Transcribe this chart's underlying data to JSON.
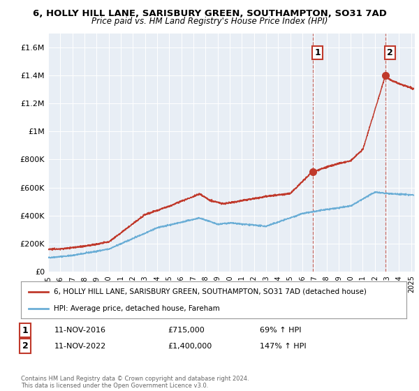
{
  "title": "6, HOLLY HILL LANE, SARISBURY GREEN, SOUTHAMPTON, SO31 7AD",
  "subtitle": "Price paid vs. HM Land Registry's House Price Index (HPI)",
  "background_color": "#f5f5f5",
  "plot_bg_color": "#e8eef5",
  "ylim": [
    0,
    1700000
  ],
  "xlim_start": 1995.0,
  "xlim_end": 2025.3,
  "yticks": [
    0,
    200000,
    400000,
    600000,
    800000,
    1000000,
    1200000,
    1400000,
    1600000
  ],
  "ytick_labels": [
    "£0",
    "£200K",
    "£400K",
    "£600K",
    "£800K",
    "£1M",
    "£1.2M",
    "£1.4M",
    "£1.6M"
  ],
  "xticks": [
    1995,
    1996,
    1997,
    1998,
    1999,
    2000,
    2001,
    2002,
    2003,
    2004,
    2005,
    2006,
    2007,
    2008,
    2009,
    2010,
    2011,
    2012,
    2013,
    2014,
    2015,
    2016,
    2017,
    2018,
    2019,
    2020,
    2021,
    2022,
    2023,
    2024,
    2025
  ],
  "sale1_x": 2016.86,
  "sale1_y": 715000,
  "sale1_date": "11-NOV-2016",
  "sale1_price": "£715,000",
  "sale1_hpi": "69% ↑ HPI",
  "sale2_x": 2022.86,
  "sale2_y": 1400000,
  "sale2_date": "11-NOV-2022",
  "sale2_price": "£1,400,000",
  "sale2_hpi": "147% ↑ HPI",
  "red_color": "#c0392b",
  "blue_color": "#6baed6",
  "legend_label_red": "6, HOLLY HILL LANE, SARISBURY GREEN, SOUTHAMPTON, SO31 7AD (detached house)",
  "legend_label_blue": "HPI: Average price, detached house, Fareham",
  "footnote": "Contains HM Land Registry data © Crown copyright and database right 2024.\nThis data is licensed under the Open Government Licence v3.0."
}
